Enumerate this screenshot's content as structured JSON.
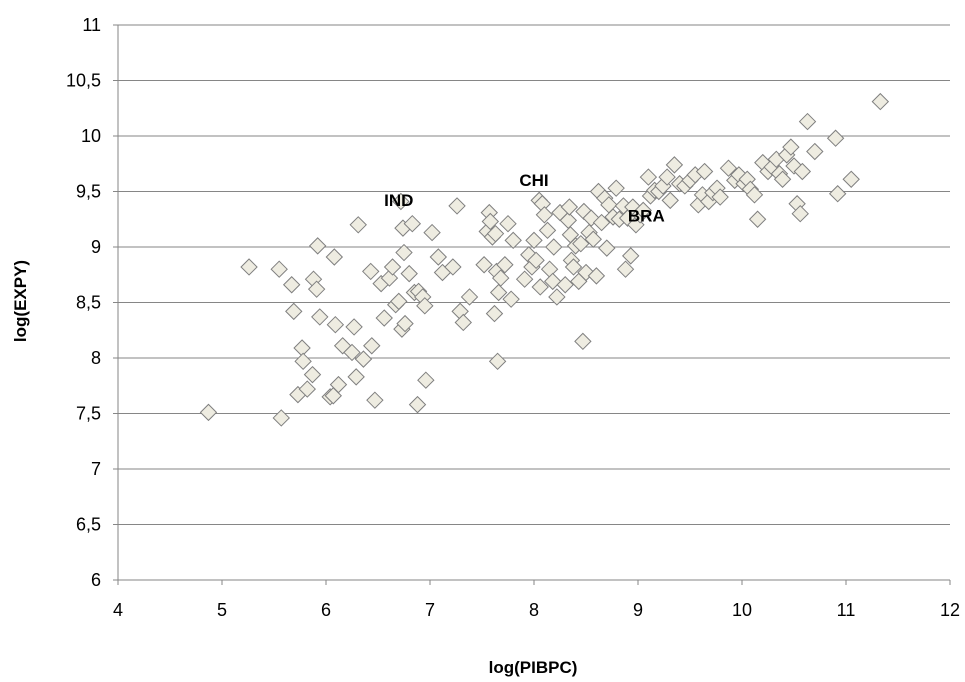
{
  "chart_data": {
    "type": "scatter",
    "title": "",
    "xlabel": "log(PIBPC)",
    "ylabel": "log(EXPY)",
    "xlim": [
      4,
      12
    ],
    "ylim": [
      6,
      11
    ],
    "x_ticks": [
      4,
      5,
      6,
      7,
      8,
      9,
      10,
      11,
      12
    ],
    "y_ticks": [
      6,
      6.5,
      7,
      7.5,
      8,
      8.5,
      9,
      9.5,
      10,
      10.5,
      11
    ],
    "x_tick_labels": [
      "4",
      "5",
      "6",
      "7",
      "8",
      "9",
      "10",
      "11",
      "12"
    ],
    "y_tick_labels": [
      "6",
      "6,5",
      "7",
      "7,5",
      "8",
      "8,5",
      "9",
      "9,5",
      "10",
      "10,5",
      "11"
    ],
    "grid": "horizontal",
    "marker": "diamond",
    "marker_color": "#eeece1",
    "marker_edge_color": "#7f7f7f",
    "annotations": [
      {
        "text": "IND",
        "x": 6.7,
        "y": 9.37
      },
      {
        "text": "CHI",
        "x": 8.0,
        "y": 9.55
      },
      {
        "text": "BRA",
        "x": 9.08,
        "y": 9.23
      }
    ],
    "points": [
      [
        4.87,
        7.51
      ],
      [
        5.26,
        8.82
      ],
      [
        5.55,
        8.8
      ],
      [
        5.57,
        7.46
      ],
      [
        5.67,
        8.66
      ],
      [
        5.69,
        8.42
      ],
      [
        5.73,
        7.67
      ],
      [
        5.77,
        8.09
      ],
      [
        5.78,
        7.97
      ],
      [
        5.82,
        7.72
      ],
      [
        5.87,
        7.85
      ],
      [
        5.88,
        8.71
      ],
      [
        5.91,
        8.62
      ],
      [
        5.92,
        9.01
      ],
      [
        5.94,
        8.37
      ],
      [
        6.04,
        7.65
      ],
      [
        6.07,
        7.66
      ],
      [
        6.08,
        8.91
      ],
      [
        6.09,
        8.3
      ],
      [
        6.12,
        7.76
      ],
      [
        6.16,
        8.11
      ],
      [
        6.25,
        8.05
      ],
      [
        6.27,
        8.28
      ],
      [
        6.29,
        7.83
      ],
      [
        6.31,
        9.2
      ],
      [
        6.36,
        7.99
      ],
      [
        6.43,
        8.78
      ],
      [
        6.44,
        8.11
      ],
      [
        6.47,
        7.62
      ],
      [
        6.53,
        8.67
      ],
      [
        6.56,
        8.36
      ],
      [
        6.61,
        8.72
      ],
      [
        6.64,
        8.82
      ],
      [
        6.67,
        8.48
      ],
      [
        6.7,
        8.51
      ],
      [
        6.72,
        9.41
      ],
      [
        6.73,
        8.26
      ],
      [
        6.74,
        9.17
      ],
      [
        6.75,
        8.95
      ],
      [
        6.76,
        8.31
      ],
      [
        6.8,
        8.76
      ],
      [
        6.83,
        9.21
      ],
      [
        6.85,
        8.59
      ],
      [
        6.88,
        7.58
      ],
      [
        6.89,
        8.6
      ],
      [
        6.93,
        8.55
      ],
      [
        6.95,
        8.47
      ],
      [
        6.96,
        7.8
      ],
      [
        7.02,
        9.13
      ],
      [
        7.08,
        8.91
      ],
      [
        7.12,
        8.77
      ],
      [
        7.22,
        8.82
      ],
      [
        7.26,
        9.37
      ],
      [
        7.29,
        8.42
      ],
      [
        7.32,
        8.32
      ],
      [
        7.38,
        8.55
      ],
      [
        7.52,
        8.84
      ],
      [
        7.55,
        9.14
      ],
      [
        7.57,
        9.31
      ],
      [
        7.58,
        9.23
      ],
      [
        7.6,
        9.09
      ],
      [
        7.62,
        8.4
      ],
      [
        7.63,
        9.12
      ],
      [
        7.64,
        8.78
      ],
      [
        7.65,
        7.97
      ],
      [
        7.66,
        8.59
      ],
      [
        7.68,
        8.72
      ],
      [
        7.72,
        8.84
      ],
      [
        7.75,
        9.21
      ],
      [
        7.78,
        8.53
      ],
      [
        7.8,
        9.06
      ],
      [
        7.91,
        8.71
      ],
      [
        7.95,
        8.93
      ],
      [
        7.98,
        8.82
      ],
      [
        8.0,
        9.06
      ],
      [
        8.02,
        8.88
      ],
      [
        8.05,
        9.42
      ],
      [
        8.06,
        8.64
      ],
      [
        8.08,
        9.39
      ],
      [
        8.1,
        9.29
      ],
      [
        8.13,
        9.15
      ],
      [
        8.15,
        8.8
      ],
      [
        8.18,
        8.69
      ],
      [
        8.19,
        9.0
      ],
      [
        8.22,
        8.55
      ],
      [
        8.25,
        9.31
      ],
      [
        8.3,
        8.66
      ],
      [
        8.33,
        9.24
      ],
      [
        8.34,
        9.36
      ],
      [
        8.35,
        9.11
      ],
      [
        8.36,
        8.88
      ],
      [
        8.38,
        8.82
      ],
      [
        8.4,
        9.01
      ],
      [
        8.43,
        8.69
      ],
      [
        8.45,
        9.03
      ],
      [
        8.47,
        8.15
      ],
      [
        8.48,
        9.32
      ],
      [
        8.5,
        8.77
      ],
      [
        8.53,
        9.13
      ],
      [
        8.55,
        9.26
      ],
      [
        8.57,
        9.07
      ],
      [
        8.6,
        8.74
      ],
      [
        8.62,
        9.5
      ],
      [
        8.65,
        9.22
      ],
      [
        8.68,
        9.44
      ],
      [
        8.7,
        8.99
      ],
      [
        8.72,
        9.38
      ],
      [
        8.76,
        9.27
      ],
      [
        8.79,
        9.53
      ],
      [
        8.82,
        9.25
      ],
      [
        8.86,
        9.37
      ],
      [
        8.88,
        8.8
      ],
      [
        8.9,
        9.26
      ],
      [
        8.93,
        8.92
      ],
      [
        8.95,
        9.36
      ],
      [
        8.98,
        9.2
      ],
      [
        9.02,
        9.29
      ],
      [
        9.05,
        9.33
      ],
      [
        9.1,
        9.63
      ],
      [
        9.12,
        9.46
      ],
      [
        9.16,
        9.51
      ],
      [
        9.2,
        9.5
      ],
      [
        9.24,
        9.55
      ],
      [
        9.28,
        9.63
      ],
      [
        9.31,
        9.42
      ],
      [
        9.35,
        9.74
      ],
      [
        9.4,
        9.57
      ],
      [
        9.45,
        9.55
      ],
      [
        9.5,
        9.6
      ],
      [
        9.55,
        9.65
      ],
      [
        9.58,
        9.38
      ],
      [
        9.62,
        9.47
      ],
      [
        9.64,
        9.68
      ],
      [
        9.68,
        9.41
      ],
      [
        9.72,
        9.49
      ],
      [
        9.76,
        9.53
      ],
      [
        9.79,
        9.45
      ],
      [
        9.87,
        9.71
      ],
      [
        9.93,
        9.6
      ],
      [
        9.97,
        9.65
      ],
      [
        10.02,
        9.57
      ],
      [
        10.05,
        9.61
      ],
      [
        10.08,
        9.52
      ],
      [
        10.12,
        9.47
      ],
      [
        10.15,
        9.25
      ],
      [
        10.2,
        9.76
      ],
      [
        10.25,
        9.68
      ],
      [
        10.29,
        9.72
      ],
      [
        10.33,
        9.79
      ],
      [
        10.36,
        9.66
      ],
      [
        10.39,
        9.61
      ],
      [
        10.43,
        9.83
      ],
      [
        10.47,
        9.9
      ],
      [
        10.5,
        9.73
      ],
      [
        10.53,
        9.39
      ],
      [
        10.56,
        9.3
      ],
      [
        10.58,
        9.68
      ],
      [
        10.63,
        10.13
      ],
      [
        10.7,
        9.86
      ],
      [
        10.9,
        9.98
      ],
      [
        10.92,
        9.48
      ],
      [
        11.05,
        9.61
      ],
      [
        11.33,
        10.31
      ]
    ]
  }
}
